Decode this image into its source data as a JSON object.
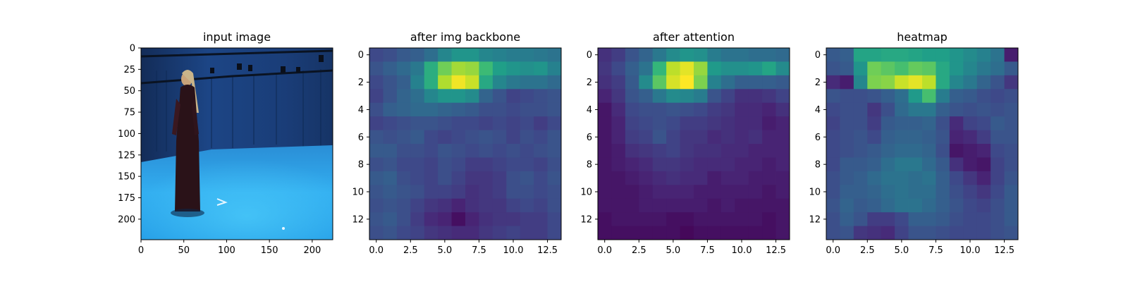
{
  "chart_data": [
    {
      "type": "image",
      "title": "input image",
      "image_content": "person in long dark dress standing in blue-lit motion-capture studio",
      "xlim": [
        0,
        224
      ],
      "ylim": [
        224,
        0
      ],
      "xticks": [
        0,
        50,
        100,
        150,
        200
      ],
      "yticks": [
        0,
        25,
        50,
        75,
        100,
        125,
        150,
        175,
        200
      ],
      "colors": {
        "backdrop": "#1b3f7a",
        "floor": "#2fa7e8",
        "figure": "#2a1218"
      }
    },
    {
      "type": "heatmap",
      "title": "after img backbone",
      "colormap": "viridis",
      "xlim": [
        -0.5,
        13.5
      ],
      "ylim": [
        13.5,
        -0.5
      ],
      "xticks": [
        "0.0",
        "2.5",
        "5.0",
        "7.5",
        "10.0",
        "12.5"
      ],
      "yticks": [
        "0",
        "2",
        "4",
        "6",
        "8",
        "10",
        "12"
      ],
      "values": [
        [
          0.22,
          0.24,
          0.28,
          0.3,
          0.36,
          0.46,
          0.52,
          0.52,
          0.46,
          0.44,
          0.42,
          0.42,
          0.4,
          0.38
        ],
        [
          0.26,
          0.3,
          0.34,
          0.4,
          0.62,
          0.78,
          0.86,
          0.84,
          0.68,
          0.56,
          0.52,
          0.5,
          0.52,
          0.44
        ],
        [
          0.22,
          0.26,
          0.3,
          0.44,
          0.62,
          0.88,
          0.98,
          0.92,
          0.6,
          0.46,
          0.4,
          0.38,
          0.38,
          0.34
        ],
        [
          0.2,
          0.26,
          0.32,
          0.36,
          0.46,
          0.52,
          0.52,
          0.48,
          0.32,
          0.26,
          0.2,
          0.22,
          0.24,
          0.26
        ],
        [
          0.24,
          0.3,
          0.32,
          0.34,
          0.34,
          0.32,
          0.3,
          0.28,
          0.24,
          0.24,
          0.22,
          0.24,
          0.24,
          0.26
        ],
        [
          0.2,
          0.22,
          0.24,
          0.26,
          0.26,
          0.24,
          0.22,
          0.22,
          0.2,
          0.22,
          0.2,
          0.22,
          0.18,
          0.22
        ],
        [
          0.26,
          0.24,
          0.26,
          0.28,
          0.22,
          0.2,
          0.22,
          0.24,
          0.26,
          0.24,
          0.2,
          0.24,
          0.22,
          0.26
        ],
        [
          0.28,
          0.28,
          0.24,
          0.24,
          0.22,
          0.26,
          0.24,
          0.22,
          0.24,
          0.22,
          0.24,
          0.22,
          0.24,
          0.26
        ],
        [
          0.24,
          0.26,
          0.22,
          0.22,
          0.2,
          0.24,
          0.22,
          0.18,
          0.18,
          0.2,
          0.22,
          0.22,
          0.2,
          0.24
        ],
        [
          0.28,
          0.3,
          0.24,
          0.22,
          0.2,
          0.24,
          0.2,
          0.16,
          0.16,
          0.18,
          0.24,
          0.26,
          0.22,
          0.26
        ],
        [
          0.26,
          0.28,
          0.26,
          0.24,
          0.2,
          0.2,
          0.18,
          0.14,
          0.16,
          0.18,
          0.24,
          0.24,
          0.22,
          0.24
        ],
        [
          0.24,
          0.26,
          0.24,
          0.2,
          0.16,
          0.14,
          0.1,
          0.14,
          0.16,
          0.16,
          0.2,
          0.22,
          0.2,
          0.24
        ],
        [
          0.26,
          0.28,
          0.24,
          0.18,
          0.12,
          0.1,
          0.04,
          0.1,
          0.14,
          0.16,
          0.16,
          0.18,
          0.18,
          0.22
        ],
        [
          0.24,
          0.26,
          0.22,
          0.2,
          0.16,
          0.14,
          0.12,
          0.12,
          0.16,
          0.18,
          0.2,
          0.18,
          0.18,
          0.22
        ]
      ]
    },
    {
      "type": "heatmap",
      "title": "after attention",
      "colormap": "viridis",
      "xlim": [
        -0.5,
        13.5
      ],
      "ylim": [
        13.5,
        -0.5
      ],
      "xticks": [
        "0.0",
        "2.5",
        "5.0",
        "7.5",
        "10.0",
        "12.5"
      ],
      "yticks": [
        "0",
        "2",
        "4",
        "6",
        "8",
        "10",
        "12"
      ],
      "values": [
        [
          0.14,
          0.18,
          0.26,
          0.32,
          0.4,
          0.48,
          0.52,
          0.5,
          0.42,
          0.38,
          0.38,
          0.36,
          0.36,
          0.34
        ],
        [
          0.16,
          0.22,
          0.3,
          0.38,
          0.66,
          0.9,
          0.96,
          0.84,
          0.54,
          0.5,
          0.5,
          0.52,
          0.58,
          0.48
        ],
        [
          0.14,
          0.18,
          0.28,
          0.48,
          0.74,
          0.94,
          1.0,
          0.8,
          0.44,
          0.36,
          0.3,
          0.3,
          0.3,
          0.28
        ],
        [
          0.1,
          0.16,
          0.26,
          0.3,
          0.4,
          0.48,
          0.46,
          0.42,
          0.26,
          0.2,
          0.14,
          0.14,
          0.16,
          0.2
        ],
        [
          0.06,
          0.12,
          0.22,
          0.24,
          0.24,
          0.26,
          0.24,
          0.22,
          0.18,
          0.16,
          0.12,
          0.12,
          0.1,
          0.14
        ],
        [
          0.06,
          0.1,
          0.2,
          0.22,
          0.24,
          0.22,
          0.18,
          0.18,
          0.16,
          0.14,
          0.12,
          0.12,
          0.08,
          0.1
        ],
        [
          0.06,
          0.1,
          0.18,
          0.2,
          0.26,
          0.2,
          0.16,
          0.16,
          0.12,
          0.14,
          0.12,
          0.14,
          0.1,
          0.1
        ],
        [
          0.06,
          0.08,
          0.14,
          0.16,
          0.18,
          0.2,
          0.16,
          0.14,
          0.14,
          0.12,
          0.12,
          0.1,
          0.1,
          0.1
        ],
        [
          0.06,
          0.08,
          0.1,
          0.12,
          0.16,
          0.16,
          0.14,
          0.12,
          0.12,
          0.12,
          0.1,
          0.1,
          0.08,
          0.1
        ],
        [
          0.06,
          0.06,
          0.08,
          0.1,
          0.12,
          0.14,
          0.12,
          0.12,
          0.08,
          0.1,
          0.1,
          0.08,
          0.08,
          0.08
        ],
        [
          0.06,
          0.06,
          0.06,
          0.08,
          0.1,
          0.1,
          0.1,
          0.08,
          0.08,
          0.08,
          0.08,
          0.08,
          0.06,
          0.08
        ],
        [
          0.06,
          0.06,
          0.06,
          0.08,
          0.08,
          0.08,
          0.08,
          0.08,
          0.06,
          0.08,
          0.06,
          0.06,
          0.06,
          0.06
        ],
        [
          0.04,
          0.06,
          0.06,
          0.06,
          0.06,
          0.04,
          0.04,
          0.06,
          0.06,
          0.06,
          0.06,
          0.06,
          0.04,
          0.06
        ],
        [
          0.04,
          0.04,
          0.04,
          0.04,
          0.04,
          0.04,
          0.02,
          0.04,
          0.04,
          0.04,
          0.04,
          0.04,
          0.04,
          0.06
        ]
      ]
    },
    {
      "type": "heatmap",
      "title": "heatmap",
      "colormap": "viridis",
      "xlim": [
        -0.5,
        13.5
      ],
      "ylim": [
        13.5,
        -0.5
      ],
      "xticks": [
        "0.0",
        "2.5",
        "5.0",
        "7.5",
        "10.0",
        "12.5"
      ],
      "yticks": [
        "0",
        "2",
        "4",
        "6",
        "8",
        "10",
        "12"
      ],
      "values": [
        [
          0.28,
          0.3,
          0.58,
          0.58,
          0.6,
          0.6,
          0.58,
          0.56,
          0.56,
          0.52,
          0.48,
          0.44,
          0.38,
          0.08
        ],
        [
          0.26,
          0.28,
          0.52,
          0.78,
          0.74,
          0.7,
          0.76,
          0.74,
          0.6,
          0.52,
          0.46,
          0.4,
          0.36,
          0.28
        ],
        [
          0.12,
          0.08,
          0.46,
          0.8,
          0.82,
          0.92,
          0.96,
          0.9,
          0.6,
          0.46,
          0.4,
          0.32,
          0.26,
          0.16
        ],
        [
          0.26,
          0.24,
          0.24,
          0.26,
          0.3,
          0.36,
          0.54,
          0.7,
          0.42,
          0.3,
          0.28,
          0.24,
          0.22,
          0.24
        ],
        [
          0.22,
          0.24,
          0.24,
          0.16,
          0.24,
          0.34,
          0.4,
          0.4,
          0.3,
          0.26,
          0.24,
          0.26,
          0.24,
          0.26
        ],
        [
          0.2,
          0.24,
          0.24,
          0.18,
          0.28,
          0.3,
          0.3,
          0.32,
          0.24,
          0.12,
          0.2,
          0.22,
          0.28,
          0.26
        ],
        [
          0.22,
          0.24,
          0.26,
          0.22,
          0.3,
          0.32,
          0.32,
          0.3,
          0.26,
          0.1,
          0.12,
          0.18,
          0.26,
          0.26
        ],
        [
          0.22,
          0.24,
          0.26,
          0.28,
          0.32,
          0.34,
          0.34,
          0.32,
          0.24,
          0.06,
          0.08,
          0.1,
          0.22,
          0.24
        ],
        [
          0.22,
          0.28,
          0.28,
          0.3,
          0.36,
          0.4,
          0.4,
          0.34,
          0.28,
          0.14,
          0.08,
          0.06,
          0.2,
          0.24
        ],
        [
          0.24,
          0.28,
          0.3,
          0.34,
          0.38,
          0.38,
          0.36,
          0.38,
          0.3,
          0.22,
          0.16,
          0.1,
          0.2,
          0.26
        ],
        [
          0.24,
          0.3,
          0.3,
          0.32,
          0.36,
          0.38,
          0.36,
          0.36,
          0.3,
          0.24,
          0.2,
          0.16,
          0.22,
          0.28
        ],
        [
          0.26,
          0.32,
          0.28,
          0.3,
          0.34,
          0.38,
          0.38,
          0.34,
          0.3,
          0.26,
          0.22,
          0.2,
          0.24,
          0.28
        ],
        [
          0.24,
          0.3,
          0.26,
          0.18,
          0.18,
          0.22,
          0.3,
          0.3,
          0.28,
          0.24,
          0.22,
          0.22,
          0.24,
          0.28
        ],
        [
          0.24,
          0.26,
          0.16,
          0.14,
          0.12,
          0.2,
          0.26,
          0.26,
          0.24,
          0.22,
          0.22,
          0.22,
          0.24,
          0.26
        ]
      ]
    }
  ]
}
